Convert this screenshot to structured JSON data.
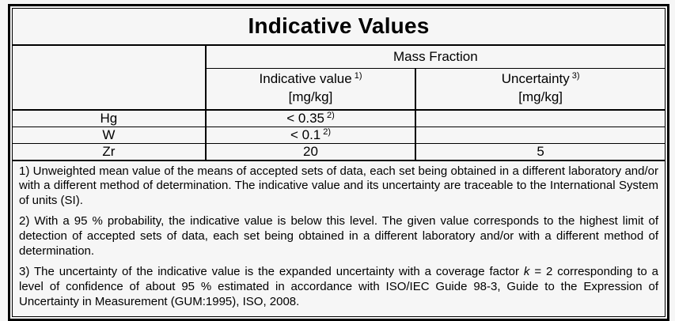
{
  "colors": {
    "border": "#000000",
    "text": "#000000",
    "page_background": "#f6f6f6"
  },
  "table": {
    "title": "Indicative Values",
    "group_header": "Mass Fraction",
    "columns": {
      "indicative_value": {
        "label": "Indicative value",
        "footnote_ref": "1)",
        "unit": "[mg/kg]"
      },
      "uncertainty": {
        "label": "Uncertainty",
        "footnote_ref": "3)",
        "unit": "[mg/kg]"
      }
    },
    "rows": [
      {
        "element": "Hg",
        "value": "< 0.35",
        "footnote_ref": "2)",
        "uncertainty": ""
      },
      {
        "element": "W",
        "value": "< 0.1",
        "footnote_ref": "2)",
        "uncertainty": ""
      },
      {
        "element": "Zr",
        "value": "20",
        "footnote_ref": "",
        "uncertainty": "5"
      }
    ],
    "footnotes": {
      "fn1": "1) Unweighted mean value of the means of accepted sets of data, each set being obtained in a different laboratory and/or with a different method of determination. The indicative value and its uncertainty are traceable to the International System of units (SI).",
      "fn2": "2) With a 95 % probability, the indicative value is below this level. The given value corresponds to the highest limit of detection of accepted sets of data, each set being obtained in a different laboratory and/or with a different method of determination.",
      "fn3_before_k": "3) The uncertainty of the indicative value is the expanded uncertainty with a coverage factor ",
      "fn3_k": "k",
      "fn3_after_k": " = 2 corresponding to a level of confidence of about 95 % estimated in accordance with ISO/IEC Guide 98-3, Guide to the Expression of Uncertainty in Measurement (GUM:1995), ISO, 2008."
    }
  }
}
